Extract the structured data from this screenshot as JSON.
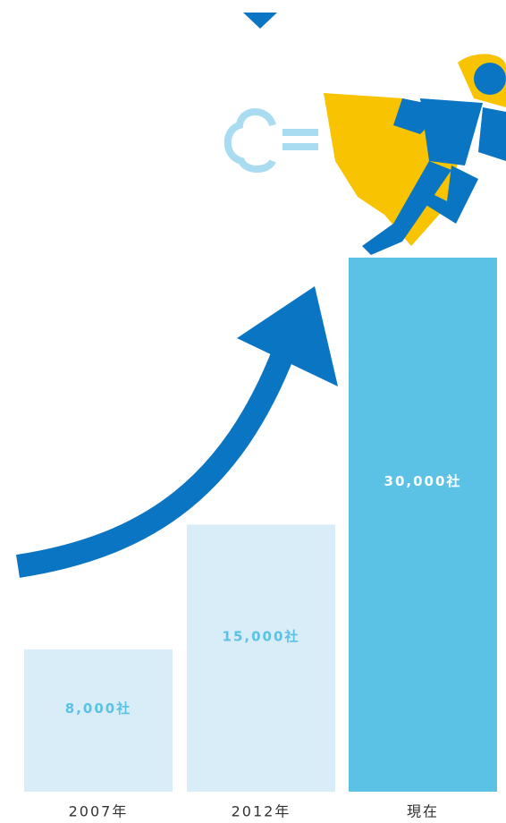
{
  "chart_data": {
    "type": "bar",
    "categories": [
      "2007年",
      "2012年",
      "現在"
    ],
    "values": [
      8000,
      15000,
      30000
    ],
    "value_labels": [
      "8,000社",
      "15,000社",
      "30,000社"
    ],
    "colors": [
      "#d8edf8",
      "#d8edf8",
      "#5bc2e6"
    ],
    "ylim": [
      0,
      30000
    ]
  }
}
